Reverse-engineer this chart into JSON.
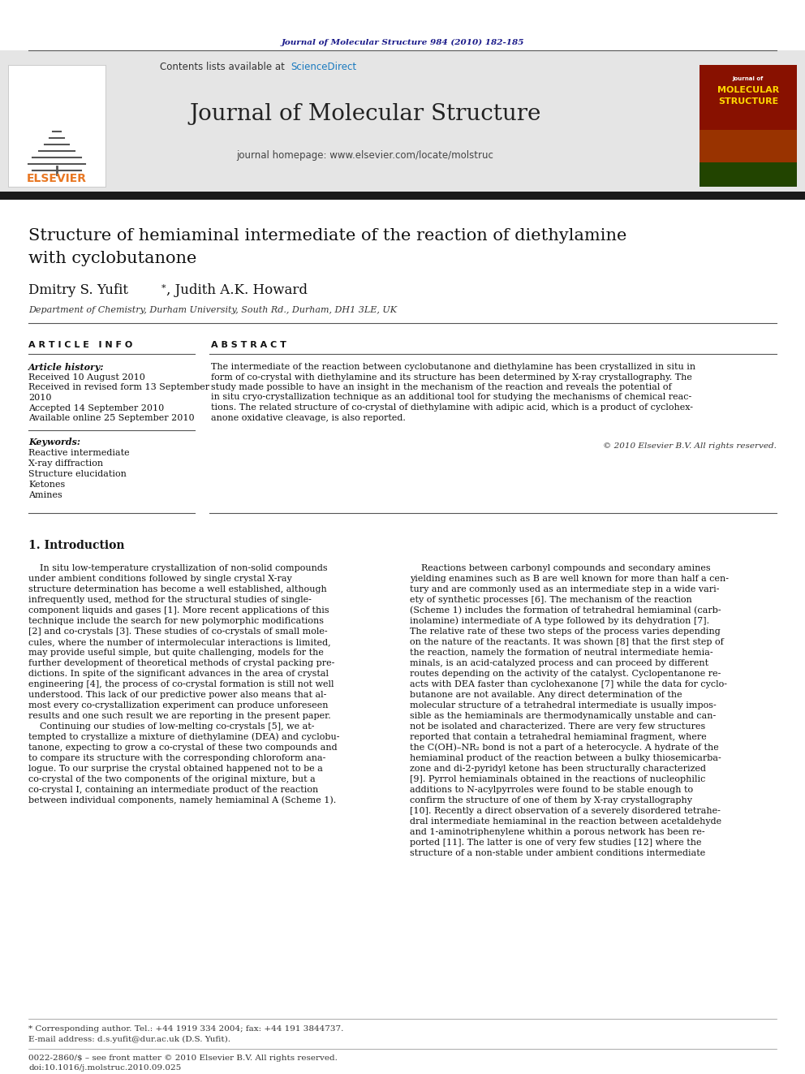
{
  "journal_ref": "Journal of Molecular Structure 984 (2010) 182-185",
  "journal_name": "Journal of Molecular Structure",
  "journal_homepage": "journal homepage: www.elsevier.com/locate/molstruc",
  "contents_line": "Contents lists available at ScienceDirect",
  "title_line1": "Structure of hemiaminal intermediate of the reaction of diethylamine",
  "title_line2": "with cyclobutanone",
  "authors_name": "Dmitry S. Yufit",
  "authors_rest": ", Judith A.K. Howard",
  "affiliation": "Department of Chemistry, Durham University, South Rd., Durham, DH1 3LE, UK",
  "article_info_header": "A R T I C L E   I N F O",
  "abstract_header": "A B S T R A C T",
  "article_history_label": "Article history:",
  "history_items": [
    "Received 10 August 2010",
    "Received in revised form 13 September",
    "2010",
    "Accepted 14 September 2010",
    "Available online 25 September 2010"
  ],
  "keywords_label": "Keywords:",
  "keywords": [
    "Reactive intermediate",
    "X-ray diffraction",
    "Structure elucidation",
    "Ketones",
    "Amines"
  ],
  "abstract_lines": [
    "The intermediate of the reaction between cyclobutanone and diethylamine has been crystallized in situ in",
    "form of co-crystal with diethylamine and its structure has been determined by X-ray crystallography. The",
    "study made possible to have an insight in the mechanism of the reaction and reveals the potential of",
    "in situ cryo-crystallization technique as an additional tool for studying the mechanisms of chemical reac-",
    "tions. The related structure of co-crystal of diethylamine with adipic acid, which is a product of cyclohex-",
    "anone oxidative cleavage, is also reported."
  ],
  "copyright": "© 2010 Elsevier B.V. All rights reserved.",
  "intro_header": "1. Introduction",
  "left_intro_lines": [
    "    In situ low-temperature crystallization of non-solid compounds",
    "under ambient conditions followed by single crystal X-ray",
    "structure determination has become a well established, although",
    "infrequently used, method for the structural studies of single-",
    "component liquids and gases [1]. More recent applications of this",
    "technique include the search for new polymorphic modifications",
    "[2] and co-crystals [3]. These studies of co-crystals of small mole-",
    "cules, where the number of intermolecular interactions is limited,",
    "may provide useful simple, but quite challenging, models for the",
    "further development of theoretical methods of crystal packing pre-",
    "dictions. In spite of the significant advances in the area of crystal",
    "engineering [4], the process of co-crystal formation is still not well",
    "understood. This lack of our predictive power also means that al-",
    "most every co-crystallization experiment can produce unforeseen",
    "results and one such result we are reporting in the present paper.",
    "    Continuing our studies of low-melting co-crystals [5], we at-",
    "tempted to crystallize a mixture of diethylamine (DEA) and cyclobu-",
    "tanone, expecting to grow a co-crystal of these two compounds and",
    "to compare its structure with the corresponding chloroform ana-",
    "logue. To our surprise the crystal obtained happened not to be a",
    "co-crystal of the two components of the original mixture, but a",
    "co-crystal I, containing an intermediate product of the reaction",
    "between individual components, namely hemiaminal A (Scheme 1)."
  ],
  "right_intro_lines": [
    "    Reactions between carbonyl compounds and secondary amines",
    "yielding enamines such as B are well known for more than half a cen-",
    "tury and are commonly used as an intermediate step in a wide vari-",
    "ety of synthetic processes [6]. The mechanism of the reaction",
    "(Scheme 1) includes the formation of tetrahedral hemiaminal (carb-",
    "inolamine) intermediate of A type followed by its dehydration [7].",
    "The relative rate of these two steps of the process varies depending",
    "on the nature of the reactants. It was shown [8] that the first step of",
    "the reaction, namely the formation of neutral intermediate hemia-",
    "minals, is an acid-catalyzed process and can proceed by different",
    "routes depending on the activity of the catalyst. Cyclopentanone re-",
    "acts with DEA faster than cyclohexanone [7] while the data for cyclo-",
    "butanone are not available. Any direct determination of the",
    "molecular structure of a tetrahedral intermediate is usually impos-",
    "sible as the hemiaminals are thermodynamically unstable and can-",
    "not be isolated and characterized. There are very few structures",
    "reported that contain a tetrahedral hemiaminal fragment, where",
    "the C(OH)–NR₂ bond is not a part of a heterocycle. A hydrate of the",
    "hemiaminal product of the reaction between a bulky thiosemicarba-",
    "zone and di-2-pyridyl ketone has been structurally characterized",
    "[9]. Pyrrol hemiaminals obtained in the reactions of nucleophilic",
    "additions to N-acylpyrroles were found to be stable enough to",
    "confirm the structure of one of them by X-ray crystallography",
    "[10]. Recently a direct observation of a severely disordered tetrahe-",
    "dral intermediate hemiaminal in the reaction between acetaldehyde",
    "and 1-aminotriphenylene whithin a porous network has been re-",
    "ported [11]. The latter is one of very few studies [12] where the",
    "structure of a non-stable under ambient conditions intermediate"
  ],
  "footer_note": "* Corresponding author. Tel.: +44 1919 334 2004; fax: +44 191 3844737.",
  "footer_email": "E-mail address: d.s.yufit@dur.ac.uk (D.S. Yufit).",
  "footer_issn": "0022-2860/$ – see front matter © 2010 Elsevier B.V. All rights reserved.",
  "footer_doi": "doi:10.1016/j.molstruc.2010.09.025",
  "bg_color": "#ffffff",
  "header_bg": "#e5e5e5",
  "black_bar_color": "#1a1a1a",
  "journal_ref_color": "#1a1a8a",
  "sciencedirect_color": "#1a7abf",
  "elsevier_orange": "#e87722",
  "link_color": "#1a7abf"
}
